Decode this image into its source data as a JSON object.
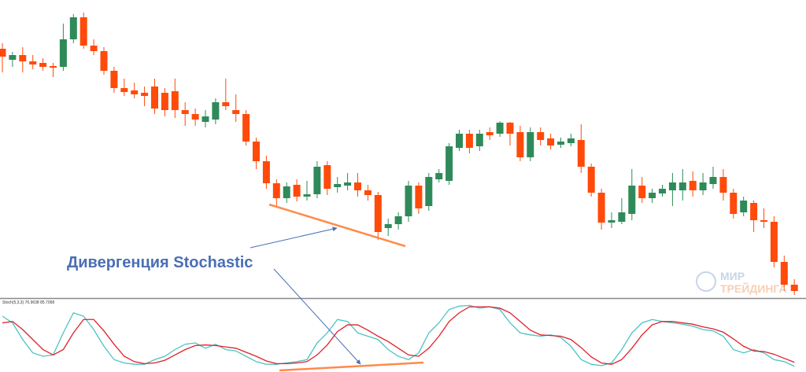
{
  "chart_data": [
    {
      "type": "candlestick",
      "ylim": [
        0,
        378
      ],
      "up_color": "#2f8a5a",
      "down_color": "#ff4a0a",
      "annotation": "Дивергенция Stochastic",
      "watermark": [
        "МИР",
        "ТРЕЙДИНГА"
      ],
      "open": [
        316,
        302,
        308,
        300,
        298,
        294,
        293,
        328,
        356,
        320,
        313,
        288,
        266,
        263,
        260,
        268,
        260,
        262,
        238,
        233,
        223,
        226,
        248,
        238,
        233,
        198,
        173,
        145,
        126,
        143,
        128,
        131,
        168,
        140,
        142,
        146,
        136,
        130,
        88,
        93,
        103,
        142,
        116,
        150,
        148,
        190,
        208,
        192,
        210,
        208,
        222,
        210,
        178,
        210,
        202,
        194,
        196,
        200,
        166,
        133,
        95,
        96,
        106,
        142,
        126,
        132,
        136,
        136,
        148,
        136,
        144,
        153,
        133,
        108,
        120,
        98,
        96,
        45,
        16
      ],
      "high": [
        323,
        312,
        318,
        308,
        304,
        298,
        348,
        360,
        362,
        328,
        318,
        293,
        278,
        273,
        268,
        278,
        266,
        278,
        248,
        240,
        238,
        253,
        278,
        258,
        238,
        203,
        180,
        150,
        146,
        150,
        148,
        173,
        173,
        153,
        158,
        158,
        143,
        134,
        100,
        108,
        148,
        146,
        158,
        163,
        196,
        213,
        213,
        213,
        216,
        224,
        223,
        218,
        216,
        216,
        208,
        203,
        208,
        220,
        170,
        138,
        108,
        126,
        163,
        153,
        138,
        143,
        158,
        163,
        160,
        158,
        166,
        163,
        138,
        128,
        123,
        113,
        103,
        53,
        23
      ],
      "low": [
        286,
        293,
        286,
        290,
        288,
        280,
        288,
        323,
        316,
        308,
        283,
        260,
        256,
        253,
        243,
        233,
        230,
        228,
        218,
        218,
        216,
        220,
        238,
        223,
        193,
        163,
        138,
        116,
        120,
        122,
        123,
        126,
        130,
        133,
        136,
        128,
        123,
        73,
        78,
        86,
        96,
        106,
        110,
        146,
        143,
        186,
        183,
        186,
        200,
        204,
        193,
        173,
        173,
        193,
        188,
        190,
        192,
        158,
        128,
        86,
        88,
        93,
        98,
        120,
        120,
        128,
        116,
        123,
        128,
        130,
        138,
        123,
        100,
        103,
        83,
        88,
        38,
        8,
        3
      ],
      "close": [
        306,
        308,
        300,
        296,
        293,
        292,
        328,
        356,
        320,
        313,
        288,
        266,
        261,
        258,
        256,
        240,
        238,
        238,
        233,
        226,
        230,
        248,
        243,
        233,
        198,
        173,
        145,
        126,
        141,
        128,
        131,
        166,
        138,
        144,
        146,
        136,
        130,
        83,
        93,
        103,
        142,
        113,
        153,
        158,
        192,
        208,
        190,
        208,
        206,
        222,
        208,
        178,
        210,
        200,
        193,
        198,
        202,
        166,
        133,
        95,
        98,
        108,
        142,
        126,
        133,
        138,
        146,
        146,
        136,
        146,
        153,
        133,
        106,
        123,
        98,
        96,
        45,
        16,
        8
      ]
    },
    {
      "type": "line",
      "label": "Stoch(5,3,3) 76.9638 85.7068",
      "ylim": [
        0,
        100
      ],
      "series": [
        {
          "color": "#4cc3c3",
          "values": [
            80,
            70,
            45,
            25,
            20,
            22,
            55,
            85,
            80,
            60,
            35,
            15,
            10,
            8,
            8,
            15,
            20,
            30,
            38,
            40,
            32,
            38,
            30,
            28,
            20,
            12,
            8,
            8,
            10,
            12,
            15,
            40,
            55,
            75,
            72,
            55,
            50,
            45,
            30,
            20,
            15,
            25,
            55,
            70,
            90,
            95,
            96,
            92,
            94,
            90,
            70,
            55,
            52,
            50,
            52,
            48,
            35,
            15,
            8,
            6,
            10,
            30,
            55,
            70,
            75,
            72,
            70,
            68,
            65,
            60,
            58,
            50,
            30,
            25,
            30,
            25,
            15,
            12,
            5
          ]
        },
        {
          "color": "#e0202a",
          "values": [
            70,
            72,
            60,
            45,
            30,
            22,
            30,
            55,
            75,
            75,
            58,
            38,
            20,
            12,
            9,
            10,
            14,
            22,
            30,
            36,
            37,
            36,
            34,
            32,
            26,
            20,
            13,
            9,
            9,
            10,
            12,
            22,
            37,
            57,
            67,
            67,
            59,
            50,
            42,
            32,
            22,
            20,
            32,
            50,
            72,
            85,
            94,
            94,
            94,
            92,
            85,
            72,
            59,
            52,
            51,
            50,
            45,
            33,
            19,
            10,
            8,
            15,
            32,
            52,
            67,
            72,
            72,
            70,
            68,
            64,
            61,
            56,
            46,
            35,
            28,
            27,
            23,
            17,
            11
          ]
        }
      ]
    }
  ]
}
